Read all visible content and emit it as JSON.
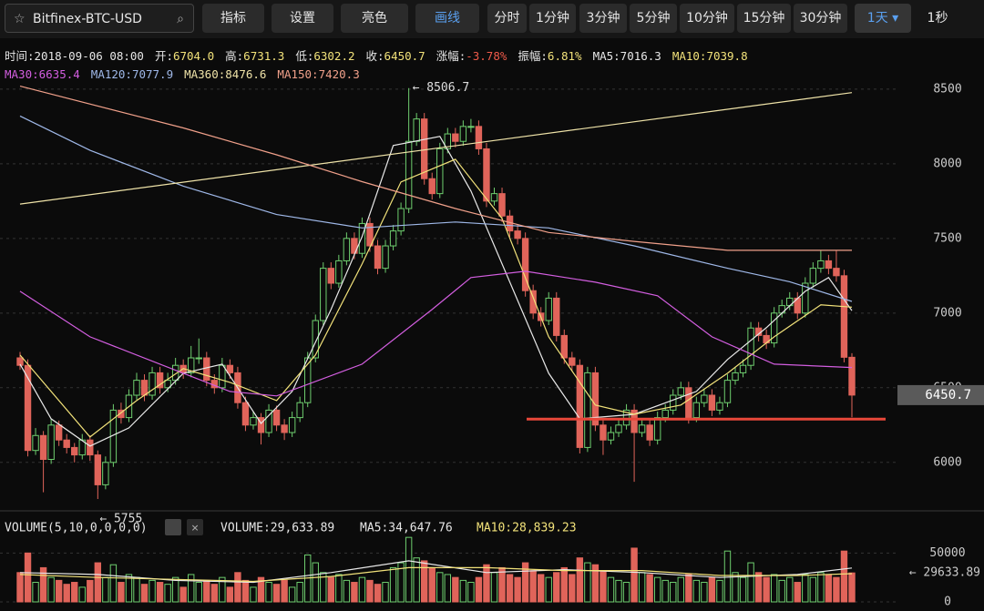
{
  "toolbar": {
    "search": "Bitfinex-BTC-USD",
    "tools": [
      "指标",
      "设置",
      "亮色",
      "画线"
    ],
    "periods": [
      "分时",
      "1分钟",
      "3分钟",
      "5分钟",
      "10分钟",
      "15分钟",
      "30分钟",
      "1天 ▾"
    ],
    "extra": "1秒"
  },
  "info": [
    {
      "label": "时间:",
      "value": "2018-09-06 08:00"
    },
    {
      "label": "开:",
      "value": "6704.0"
    },
    {
      "label": "高:",
      "value": "6731.3"
    },
    {
      "label": "低:",
      "value": "6302.2"
    },
    {
      "label": "收:",
      "value": "6450.7"
    },
    {
      "label": "涨幅:",
      "value": "-3.78%"
    },
    {
      "label": "振幅:",
      "value": "6.81%"
    }
  ],
  "chart_data": {
    "type": "candlestick",
    "up_color": "#6fcf6f",
    "down_color": "#e0645a",
    "grid": true,
    "ylim": [
      5700,
      8560
    ],
    "yticks": [
      6000,
      6500,
      7000,
      7500,
      8000,
      8500
    ],
    "open": [
      6700,
      6650,
      6080,
      6180,
      6020,
      6250,
      6150,
      6100,
      6050,
      6150,
      6050,
      5850,
      6000,
      6350,
      6300,
      6450,
      6550,
      6450,
      6600,
      6500,
      6550,
      6650,
      6600,
      6700,
      6700,
      6550,
      6500,
      6650,
      6600,
      6400,
      6250,
      6300,
      6200,
      6350,
      6250,
      6200,
      6300,
      6400,
      6700,
      6950,
      7300,
      7200,
      7350,
      7500,
      7400,
      7600,
      7450,
      7300,
      7450,
      7550,
      7700,
      8150,
      8300,
      7900,
      7800,
      8100,
      8200,
      8150,
      8250,
      8250,
      8100,
      7750,
      7800,
      7650,
      7550,
      7500,
      7150,
      7000,
      6950,
      7100,
      6850,
      6700,
      6650,
      6100,
      6600,
      6250,
      6150,
      6200,
      6250,
      6350,
      6200,
      6250,
      6150,
      6300,
      6350,
      6450,
      6500,
      6300,
      6400,
      6450,
      6350,
      6400,
      6550,
      6600,
      6650,
      6900,
      6850,
      6800,
      7000,
      7050,
      7100,
      7000,
      7200,
      7300,
      7350,
      7300,
      7250,
      6704.0
    ],
    "high": [
      6740,
      6690,
      6230,
      6210,
      6290,
      6280,
      6190,
      6130,
      6190,
      6180,
      6080,
      6040,
      6390,
      6400,
      6490,
      6600,
      6590,
      6640,
      6640,
      6600,
      6700,
      6690,
      6780,
      6830,
      6740,
      6590,
      6700,
      6690,
      6640,
      6440,
      6340,
      6330,
      6390,
      6380,
      6290,
      6340,
      6440,
      6740,
      6990,
      7340,
      7340,
      7390,
      7540,
      7540,
      7640,
      7640,
      7490,
      7490,
      7590,
      7740,
      8506.7,
      8340,
      8340,
      7940,
      8140,
      8240,
      8240,
      8290,
      8300,
      8290,
      8140,
      7840,
      7840,
      7690,
      7590,
      7540,
      7190,
      7040,
      7140,
      7140,
      6890,
      6740,
      6690,
      6640,
      6640,
      6290,
      6240,
      6290,
      6390,
      6390,
      6290,
      6290,
      6340,
      6390,
      6490,
      6540,
      6540,
      6440,
      6490,
      6490,
      6440,
      6590,
      6640,
      6690,
      6940,
      6940,
      6890,
      7040,
      7090,
      7140,
      7140,
      7240,
      7340,
      7420,
      7390,
      7420,
      7290,
      6731.3
    ],
    "low": [
      6620,
      6040,
      6050,
      5800,
      5990,
      6110,
      6060,
      6000,
      6020,
      6010,
      5755,
      5820,
      5970,
      6260,
      6270,
      6420,
      6410,
      6420,
      6460,
      6470,
      6520,
      6560,
      6570,
      6660,
      6510,
      6460,
      6470,
      6560,
      6360,
      6210,
      6220,
      6120,
      6170,
      6210,
      6150,
      6170,
      6270,
      6370,
      6670,
      6920,
      7160,
      7170,
      7320,
      7360,
      7370,
      7410,
      7260,
      7270,
      7420,
      7520,
      7670,
      8120,
      7860,
      7760,
      7770,
      8070,
      8110,
      8120,
      8210,
      8060,
      7710,
      7720,
      7610,
      7510,
      7460,
      7110,
      6960,
      6910,
      6920,
      6810,
      6660,
      6610,
      6060,
      6070,
      6210,
      6050,
      6120,
      6170,
      6220,
      5870,
      6170,
      6110,
      6120,
      6270,
      6320,
      6420,
      6260,
      6270,
      6370,
      6310,
      6320,
      6370,
      6520,
      6570,
      6620,
      6810,
      6760,
      6770,
      6970,
      7020,
      6960,
      6970,
      7170,
      7270,
      7260,
      7210,
      6670,
      6302.2
    ],
    "close": [
      6650,
      6080,
      6180,
      6020,
      6250,
      6150,
      6100,
      6050,
      6150,
      6050,
      5850,
      6000,
      6350,
      6300,
      6450,
      6550,
      6450,
      6600,
      6500,
      6550,
      6650,
      6600,
      6700,
      6700,
      6550,
      6500,
      6650,
      6600,
      6400,
      6250,
      6300,
      6200,
      6350,
      6250,
      6200,
      6300,
      6400,
      6700,
      6950,
      7300,
      7200,
      7350,
      7500,
      7400,
      7600,
      7450,
      7300,
      7450,
      7550,
      7700,
      8150,
      8300,
      7900,
      7800,
      8100,
      8200,
      8150,
      8250,
      8250,
      8100,
      7750,
      7800,
      7650,
      7550,
      7500,
      7150,
      7000,
      6950,
      7100,
      6850,
      6700,
      6650,
      6100,
      6600,
      6250,
      6150,
      6200,
      6250,
      6350,
      6200,
      6250,
      6150,
      6300,
      6350,
      6450,
      6500,
      6300,
      6400,
      6450,
      6350,
      6400,
      6550,
      6600,
      6650,
      6900,
      6850,
      6800,
      7000,
      7050,
      7100,
      7000,
      7200,
      7300,
      7350,
      7300,
      7250,
      6704.0,
      6450.7
    ],
    "high_label": "← 8506.7",
    "low_label": "← 5755",
    "support_line": {
      "value": 6290,
      "color": "#e8473a"
    },
    "ma_lines": [
      {
        "name": "MA5:7016.3",
        "color": "#e8e8e8",
        "x": [
          0,
          4,
          9,
          14,
          21,
          26,
          31,
          35,
          40,
          44,
          48,
          54,
          58,
          63,
          68,
          72,
          79,
          87,
          91,
          96,
          101,
          104,
          107
        ],
        "values": [
          6658,
          6292,
          6109,
          6231,
          6597,
          6658,
          6261,
          6475,
          7024,
          7512,
          8122,
          8183,
          7817,
          7207,
          6597,
          6292,
          6322,
          6475,
          6689,
          6902,
          7146,
          7238,
          7016.3
        ]
      },
      {
        "name": "MA10:7039.8",
        "color": "#f2e27a",
        "x": [
          0,
          9,
          15,
          21,
          27,
          33,
          38,
          44,
          49,
          56,
          62,
          68,
          74,
          79,
          85,
          91,
          97,
          103,
          107
        ],
        "values": [
          6719,
          6170,
          6414,
          6628,
          6536,
          6414,
          6719,
          7329,
          7878,
          8030,
          7634,
          6841,
          6384,
          6322,
          6384,
          6597,
          6841,
          7055,
          7039.8
        ]
      },
      {
        "name": "MA30:6635.4",
        "color": "#d35ee0",
        "x": [
          0,
          9,
          21,
          27,
          33,
          44,
          53,
          58,
          65,
          74,
          82,
          89,
          97,
          107
        ],
        "values": [
          7146,
          6841,
          6597,
          6475,
          6445,
          6658,
          7024,
          7238,
          7280,
          7207,
          7116,
          6841,
          6658,
          6635.4
        ]
      },
      {
        "name": "MA120:7077.9",
        "color": "#9fb8e8",
        "x": [
          0,
          9,
          21,
          33,
          44,
          56,
          68,
          79,
          91,
          99,
          107
        ],
        "values": [
          8320,
          8090,
          7850,
          7660,
          7570,
          7610,
          7570,
          7450,
          7300,
          7210,
          7077.9
        ]
      },
      {
        "name": "MA360:8476.6",
        "color": "#efe3a8",
        "x": [
          0,
          107
        ],
        "values": [
          7730,
          8476.6
        ]
      },
      {
        "name": "MA150:7420.3",
        "color": "#f0a08a",
        "x": [
          0,
          21,
          33,
          44,
          56,
          68,
          79,
          91,
          107
        ],
        "values": [
          8520,
          8240,
          8060,
          7880,
          7700,
          7540,
          7480,
          7420,
          7420.3
        ]
      }
    ],
    "volume": {
      "title": "VOLUME(5,10,0,0,0,0)",
      "legend": [
        "VOLUME:29,633.89",
        "MA5:34,647.76",
        "MA10:28,839.23"
      ],
      "ylim": [
        0,
        68000
      ],
      "yticks": [
        0,
        50000
      ],
      "last_label": "← 29633.89",
      "values": [
        30000,
        50000,
        20000,
        35000,
        25000,
        22000,
        18000,
        20000,
        15000,
        22000,
        40000,
        25000,
        38000,
        20000,
        28000,
        25000,
        18000,
        22000,
        20000,
        18000,
        25000,
        15000,
        28000,
        20000,
        22000,
        18000,
        25000,
        15000,
        30000,
        22000,
        15000,
        25000,
        20000,
        18000,
        22000,
        15000,
        20000,
        48000,
        40000,
        30000,
        25000,
        28000,
        22000,
        20000,
        25000,
        22000,
        18000,
        20000,
        35000,
        40000,
        66000,
        45000,
        42000,
        35000,
        30000,
        28000,
        25000,
        22000,
        20000,
        25000,
        38000,
        30000,
        35000,
        28000,
        25000,
        40000,
        32000,
        28000,
        25000,
        30000,
        35000,
        28000,
        45000,
        40000,
        38000,
        32000,
        25000,
        22000,
        20000,
        55000,
        30000,
        28000,
        25000,
        22000,
        20000,
        25000,
        28000,
        22000,
        20000,
        25000,
        22000,
        52000,
        30000,
        25000,
        40000,
        30000,
        25000,
        28000,
        22000,
        25000,
        20000,
        28000,
        25000,
        30000,
        28000,
        25000,
        52000,
        29633.89
      ],
      "ma_lines": [
        {
          "color": "#e8e8e8",
          "x": [
            0,
            10,
            20,
            30,
            40,
            50,
            60,
            70,
            80,
            90,
            100,
            107
          ],
          "values": [
            30000,
            28000,
            22000,
            20000,
            30000,
            42000,
            30000,
            33000,
            30000,
            25000,
            28000,
            34647.76
          ]
        },
        {
          "color": "#f2e27a",
          "x": [
            0,
            10,
            20,
            30,
            40,
            50,
            60,
            70,
            80,
            90,
            100,
            107
          ],
          "values": [
            28000,
            25000,
            23000,
            21000,
            26000,
            35000,
            35000,
            32000,
            32000,
            27000,
            27000,
            28839.23
          ]
        }
      ]
    }
  }
}
